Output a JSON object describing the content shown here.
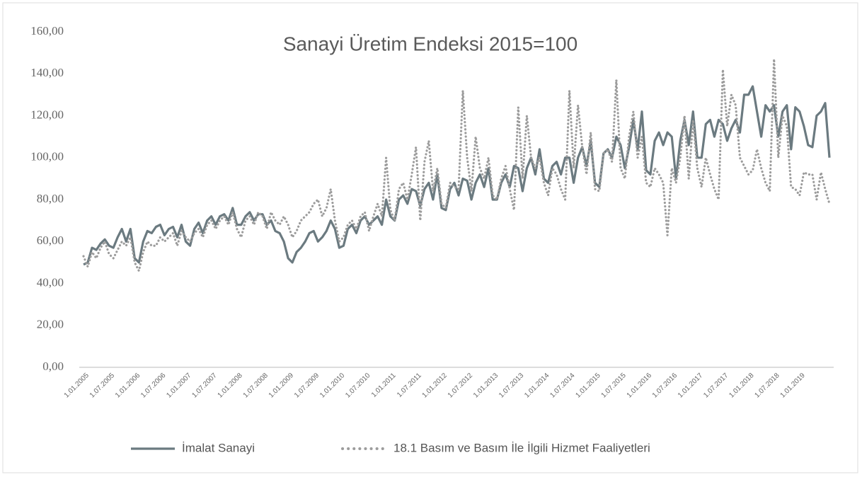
{
  "chart_data": {
    "type": "line",
    "title": "Sanayi Üretim Endeksi 2015=100",
    "categories": [
      "1.01.2005",
      null,
      null,
      null,
      null,
      null,
      "1.07.2005",
      null,
      null,
      null,
      null,
      null,
      "1.01.2006",
      null,
      null,
      null,
      null,
      null,
      "1.07.2006",
      null,
      null,
      null,
      null,
      null,
      "1.01.2007",
      null,
      null,
      null,
      null,
      null,
      "1.07.2007",
      null,
      null,
      null,
      null,
      null,
      "1.01.2008",
      null,
      null,
      null,
      null,
      null,
      "1.07.2008",
      null,
      null,
      null,
      null,
      null,
      "1.01.2009",
      null,
      null,
      null,
      null,
      null,
      "1.07.2009",
      null,
      null,
      null,
      null,
      null,
      "1.01.2010",
      null,
      null,
      null,
      null,
      null,
      "1.07.2010",
      null,
      null,
      null,
      null,
      null,
      "1.01.2011",
      null,
      null,
      null,
      null,
      null,
      "1.07.2011",
      null,
      null,
      null,
      null,
      null,
      "1.01.2012",
      null,
      null,
      null,
      null,
      null,
      "1.07.2012",
      null,
      null,
      null,
      null,
      null,
      "1.01.2013",
      null,
      null,
      null,
      null,
      null,
      "1.07.2013",
      null,
      null,
      null,
      null,
      null,
      "1.01.2014",
      null,
      null,
      null,
      null,
      null,
      "1.07.2014",
      null,
      null,
      null,
      null,
      null,
      "1.01.2015",
      null,
      null,
      null,
      null,
      null,
      "1.07.2015",
      null,
      null,
      null,
      null,
      null,
      "1.01.2016",
      null,
      null,
      null,
      null,
      null,
      "1.07.2016",
      null,
      null,
      null,
      null,
      null,
      "1.01.2017",
      null,
      null,
      null,
      null,
      null,
      "1.07.2017",
      null,
      null,
      null,
      null,
      null,
      "1.01.2018",
      null,
      null,
      null,
      null,
      null,
      "1.07.2018",
      null,
      null,
      null,
      null,
      null,
      "1.01.2019",
      null,
      null,
      null,
      null,
      null,
      null,
      null
    ],
    "series": [
      {
        "name": "İmalat Sanayi",
        "color": "#6b7a80",
        "style": "solid",
        "values": [
          49,
          50,
          57,
          56,
          59,
          61,
          58,
          57,
          62,
          66,
          60,
          66,
          52,
          50,
          60,
          65,
          64,
          67,
          68,
          63,
          66,
          67,
          62,
          68,
          60,
          58,
          66,
          69,
          64,
          70,
          72,
          68,
          72,
          73,
          70,
          76,
          68,
          68,
          72,
          74,
          70,
          73,
          73,
          68,
          70,
          65,
          64,
          60,
          52,
          50,
          55,
          57,
          60,
          64,
          65,
          60,
          62,
          65,
          70,
          66,
          57,
          58,
          66,
          68,
          64,
          70,
          72,
          68,
          70,
          72,
          68,
          80,
          72,
          70,
          80,
          82,
          78,
          85,
          84,
          77,
          85,
          88,
          80,
          92,
          76,
          75,
          85,
          88,
          82,
          90,
          89,
          80,
          88,
          92,
          86,
          95,
          80,
          80,
          88,
          92,
          86,
          96,
          95,
          84,
          95,
          100,
          92,
          104,
          90,
          88,
          96,
          98,
          92,
          100,
          100,
          88,
          100,
          105,
          96,
          108,
          88,
          86,
          102,
          104,
          100,
          110,
          106,
          95,
          105,
          118,
          104,
          122,
          94,
          92,
          108,
          112,
          106,
          112,
          110,
          90,
          108,
          118,
          106,
          122,
          100,
          100,
          116,
          118,
          110,
          118,
          116,
          108,
          114,
          118,
          112,
          130,
          130,
          134,
          122,
          110,
          125,
          122,
          125,
          110,
          122,
          125,
          104,
          124,
          122,
          115,
          106,
          105,
          120,
          122,
          126,
          100
        ]
      },
      {
        "name": "18.1 Basım ve Basım İle İlgili Hizmet Faaliyetleri",
        "color": "#9c9c9c",
        "style": "dotted",
        "values": [
          53,
          48,
          55,
          52,
          57,
          60,
          54,
          52,
          56,
          60,
          58,
          62,
          50,
          46,
          55,
          60,
          58,
          58,
          62,
          60,
          62,
          64,
          58,
          65,
          62,
          60,
          64,
          66,
          62,
          68,
          70,
          66,
          70,
          72,
          68,
          74,
          66,
          62,
          70,
          72,
          68,
          74,
          72,
          66,
          74,
          70,
          68,
          72,
          68,
          62,
          65,
          70,
          72,
          74,
          78,
          80,
          72,
          76,
          85,
          70,
          60,
          62,
          68,
          70,
          66,
          72,
          74,
          65,
          72,
          78,
          72,
          100,
          75,
          70,
          85,
          88,
          80,
          92,
          105,
          70,
          98,
          108,
          84,
          95,
          78,
          76,
          88,
          86,
          85,
          132,
          100,
          84,
          110,
          95,
          90,
          100,
          82,
          80,
          90,
          96,
          85,
          75,
          124,
          90,
          120,
          100,
          95,
          100,
          88,
          82,
          95,
          92,
          85,
          80,
          132,
          95,
          125,
          105,
          92,
          112,
          85,
          84,
          102,
          104,
          98,
          137,
          95,
          90,
          110,
          122,
          100,
          110,
          88,
          86,
          95,
          92,
          88,
          63,
          95,
          88,
          100,
          120,
          90,
          118,
          95,
          86,
          100,
          92,
          85,
          80,
          142,
          115,
          130,
          125,
          100,
          96,
          92,
          94,
          104,
          95,
          88,
          84,
          147,
          100,
          120,
          115,
          86,
          85,
          82,
          93,
          92,
          92,
          80,
          93,
          85,
          78
        ]
      }
    ],
    "ylim": [
      0,
      160
    ],
    "yticks": [
      {
        "value": 0,
        "label": "0,00"
      },
      {
        "value": 20,
        "label": "20,00"
      },
      {
        "value": 40,
        "label": "40,00"
      },
      {
        "value": 60,
        "label": "60,00"
      },
      {
        "value": 80,
        "label": "80,00"
      },
      {
        "value": 100,
        "label": "100,00"
      },
      {
        "value": 120,
        "label": "120,00"
      },
      {
        "value": 140,
        "label": "140,00"
      },
      {
        "value": 160,
        "label": "160,00"
      }
    ],
    "grid": false,
    "legend": "bottom"
  }
}
